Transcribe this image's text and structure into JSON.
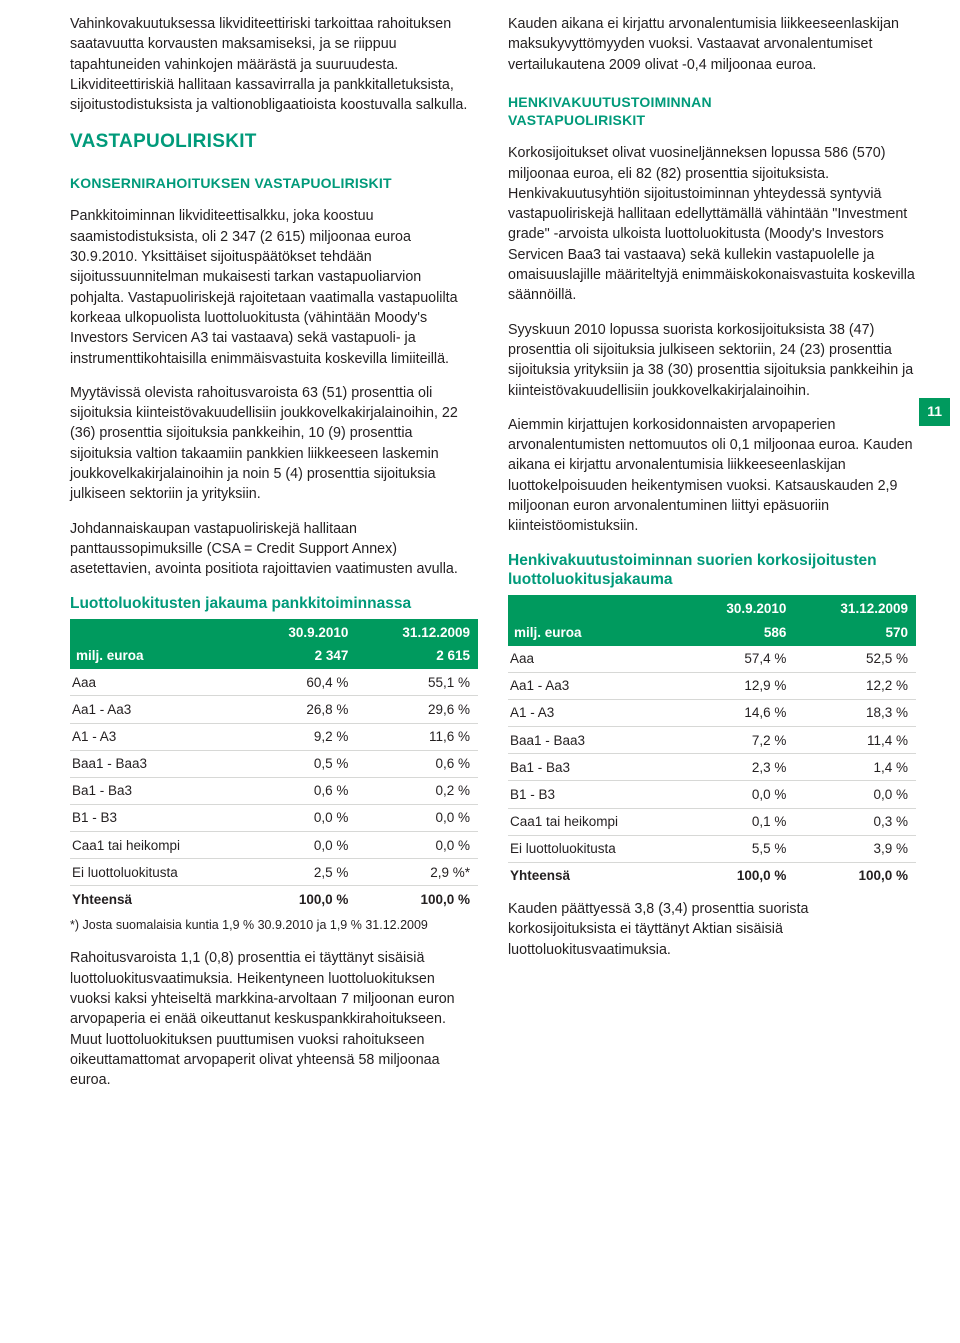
{
  "page_number": "11",
  "left": {
    "p1": "Vahinkovakuutuksessa likviditeettiriski tarkoittaa rahoituksen saatavuutta korvausten maksamiseksi, ja se riippuu tapahtuneiden vahinkojen määrästä ja suuruudesta. Likviditeettiriskiä hallitaan kassavirralla ja pankkitalletuksista, sijoitustodistuksista ja valtionobligaatioista koostuvalla salkulla.",
    "h1": "VASTAPUOLIRISKIT",
    "h2": "KONSERNIRAHOITUKSEN VASTAPUOLIRISKIT",
    "p2": "Pankkitoiminnan likviditeettisalkku, joka koostuu saamistodistuksista, oli 2 347 (2 615) miljoonaa euroa 30.9.2010. Yksittäiset sijoituspäätökset tehdään sijoitussuunnitelman mukaisesti tarkan vastapuoliarvion pohjalta. Vastapuoliriskejä rajoitetaan vaatimalla vastapuolilta korkeaa ulkopuolista luottoluokitusta (vähintään Moody's Investors Servicen A3 tai vastaava) sekä vastapuoli- ja instrumenttikohtaisilla enimmäisvastuita koskevilla limiiteillä.",
    "p3": "Myytävissä olevista rahoitusvaroista 63 (51) prosenttia oli sijoituksia kiinteistövakuudellisiin joukkovelkakirjalainoihin, 22 (36) prosenttia sijoituksia pankkeihin, 10 (9) prosenttia sijoituksia valtion takaamiin pankkien liikkeeseen laskemin joukkovelkakirjalainoihin ja noin 5 (4) prosenttia sijoituksia julkiseen sektoriin ja yrityksiin.",
    "p4": "Johdannaiskaupan vastapuoliriskejä hallitaan panttaussopimuksille (CSA = Credit Support Annex) asetettavien, avointa positiota rajoittavien vaatimusten avulla.",
    "table": {
      "title": "Luottoluokitusten jakauma pankkitoiminnassa",
      "col_dates": [
        "30.9.2010",
        "31.12.2009"
      ],
      "milj_label": "milj. euroa",
      "milj_vals": [
        "2 347",
        "2 615"
      ],
      "rows": [
        [
          "Aaa",
          "60,4 %",
          "55,1 %"
        ],
        [
          "Aa1 - Aa3",
          "26,8 %",
          "29,6 %"
        ],
        [
          "A1 - A3",
          "9,2 %",
          "11,6 %"
        ],
        [
          "Baa1 - Baa3",
          "0,5 %",
          "0,6 %"
        ],
        [
          "Ba1 - Ba3",
          "0,6 %",
          "0,2 %"
        ],
        [
          "B1 - B3",
          "0,0 %",
          "0,0 %"
        ],
        [
          "Caa1 tai heikompi",
          "0,0 %",
          "0,0 %"
        ],
        [
          "Ei luottoluokitusta",
          "2,5 %",
          "2,9 %*"
        ]
      ],
      "total": [
        "Yhteensä",
        "100,0 %",
        "100,0 %"
      ],
      "footnote": "*) Josta suomalaisia kuntia 1,9 % 30.9.2010 ja 1,9 % 31.12.2009"
    },
    "p5": "Rahoitusvaroista 1,1 (0,8) prosenttia ei täyttänyt sisäisiä luottoluokitusvaatimuksia. Heikentyneen luottoluokituksen vuoksi kaksi yhteiseltä markkina-arvoltaan 7 miljoonan euron arvopaperia ei enää oikeuttanut keskuspankkirahoitukseen. Muut luottoluokituksen puuttumisen vuoksi rahoitukseen oikeuttamattomat arvopaperit olivat yhteensä 58 miljoonaa euroa."
  },
  "right": {
    "p1": "Kauden aikana ei kirjattu arvonalentumisia liikkeeseenlaskijan maksukyvyttömyyden vuoksi. Vastaavat arvonalentumiset vertailukautena 2009 olivat -0,4 miljoonaa euroa.",
    "h1a": "HENKIVAKUUTUSTOIMINNAN",
    "h1b": "VASTAPUOLIRISKIT",
    "p2": "Korkosijoitukset olivat vuosineljänneksen lopussa 586 (570) miljoonaa euroa, eli 82 (82) prosenttia sijoituksista. Henkivakuutusyhtiön sijoitustoiminnan yhteydessä syntyviä vastapuoliriskejä hallitaan edellyttämällä vähintään \"Investment grade\" -arvoista ulkoista luottoluokitusta (Moody's Investors Servicen Baa3 tai vastaava) sekä kullekin vastapuolelle ja omaisuuslajille määriteltyjä enimmäiskokonaisvastuita koskevilla säännöillä.",
    "p3": "Syyskuun 2010 lopussa suorista korkosijoituksista 38 (47) prosenttia oli sijoituksia julkiseen sektoriin, 24 (23) prosenttia sijoituksia yrityksiin ja 38 (30) prosenttia sijoituksia pankkeihin ja kiinteistövakuudellisiin joukkovelkakirjalainoihin.",
    "p4": "Aiemmin kirjattujen korkosidonnaisten arvopaperien arvonalentumisten nettomuutos oli 0,1 miljoonaa euroa. Kauden aikana ei kirjattu arvonalentumisia liikkeeseenlaskijan luottokelpoisuuden heikentymisen vuoksi. Katsauskauden 2,9 miljoonan euron arvonalentuminen liittyi epäsuoriin kiinteistöomistuksiin.",
    "table": {
      "title": "Henkivakuutustoiminnan suorien korkosijoitusten luottoluokitusjakauma",
      "col_dates": [
        "30.9.2010",
        "31.12.2009"
      ],
      "milj_label": "milj. euroa",
      "milj_vals": [
        "586",
        "570"
      ],
      "rows": [
        [
          "Aaa",
          "57,4 %",
          "52,5 %"
        ],
        [
          "Aa1 - Aa3",
          "12,9 %",
          "12,2 %"
        ],
        [
          "A1 - A3",
          "14,6 %",
          "18,3 %"
        ],
        [
          "Baa1 - Baa3",
          "7,2 %",
          "11,4 %"
        ],
        [
          "Ba1 - Ba3",
          "2,3 %",
          "1,4 %"
        ],
        [
          "B1 - B3",
          "0,0 %",
          "0,0 %"
        ],
        [
          "Caa1 tai heikompi",
          "0,1 %",
          "0,3 %"
        ],
        [
          "Ei luottoluokitusta",
          "5,5 %",
          "3,9 %"
        ]
      ],
      "total": [
        "Yhteensä",
        "100,0 %",
        "100,0 %"
      ]
    },
    "p5": "Kauden päättyessä 3,8 (3,4) prosenttia suorista korkosijoituksista ei täyttänyt Aktian sisäisiä luottoluokitusvaatimuksia."
  }
}
